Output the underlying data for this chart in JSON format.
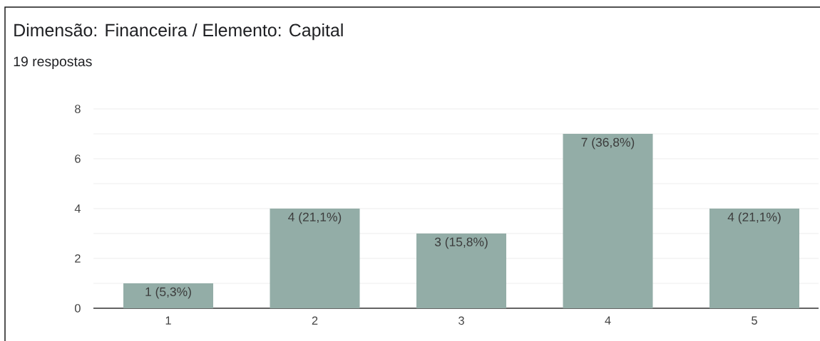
{
  "chart_data": {
    "type": "bar",
    "title": "Dimensão: Financeira / Elemento: Capital",
    "subtitle": "19 respostas",
    "categories": [
      "1",
      "2",
      "3",
      "4",
      "5"
    ],
    "values": [
      1,
      4,
      3,
      7,
      4
    ],
    "color": "#93ada7",
    "value_labels": [
      "1 (5,3%)",
      "4 (21,1%)",
      "3 (15,8%)",
      "7 (36,8%)",
      "4 (21,1%)"
    ],
    "ylim": [
      0,
      8
    ],
    "yticks": [
      0,
      2,
      4,
      6,
      8
    ],
    "grid": "y"
  }
}
